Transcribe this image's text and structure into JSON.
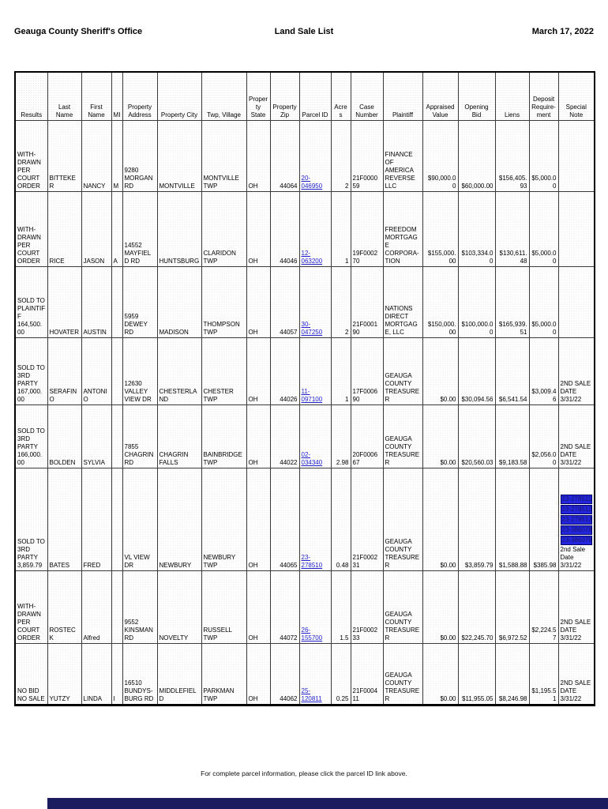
{
  "page": {
    "header_left": "Geauga County Sheriff's Office",
    "header_center": "Land Sale List",
    "header_right": "March 17, 2022",
    "footer_note": "For complete parcel information, please click the parcel ID link above."
  },
  "colors": {
    "link_blue": "#2222cc",
    "highlight_link_bg": "#2326dd",
    "bottom_bar_navy": "#1b1b60"
  },
  "table": {
    "columns": [
      "Results",
      "Last Name",
      "First Name",
      "MI",
      "Property Address",
      "Property City",
      "Twp, Village",
      "Property State",
      "Property Zip",
      "Parcel ID",
      "Acres",
      "Case Number",
      "Plaintiff",
      "Appraised Value",
      "Opening Bid",
      "Liens",
      "Deposit Require-ment",
      "Special Note"
    ],
    "rows": [
      {
        "results": "WITH-DRAWN PER COURT ORDER",
        "last_name": "BITTEKER",
        "first_name": "NANCY",
        "mi": "M",
        "address": "9280 MORGAN RD",
        "city": "MONTVILLE",
        "twp_village": "MONTVILLE TWP",
        "state": "OH",
        "zip": "44064",
        "parcel_id": "20-046950",
        "acres": "2",
        "case_number": "21F000059",
        "plaintiff": "FINANCE OF AMERICA REVERSE LLC",
        "appraised_value": "$90,000.00",
        "opening_bid": "$60,000.00",
        "liens": "$156,405.93",
        "deposit": "$5,000.00",
        "special_note": "",
        "special_links": []
      },
      {
        "results": "WITH-DRAWN PER COURT ORDER",
        "last_name": "RICE",
        "first_name": "JASON",
        "mi": "A",
        "address": "14552 MAYFIELD RD",
        "city": "HUNTSBURG",
        "twp_village": "CLARIDON TWP",
        "state": "OH",
        "zip": "44046",
        "parcel_id": "12-063200",
        "acres": "1",
        "case_number": "19F000270",
        "plaintiff": "FREEDOM MORTGAGE CORPORA-TION",
        "appraised_value": "$155,000.00",
        "opening_bid": "$103,334.00",
        "liens": "$130,611.48",
        "deposit": "$5,000.00",
        "special_note": "",
        "special_links": []
      },
      {
        "results": "SOLD TO PLAINTIFF 164,500.00",
        "last_name": "HOVATER",
        "first_name": "AUSTIN",
        "mi": "",
        "address": "5959 DEWEY RD",
        "city": "MADISON",
        "twp_village": "THOMPSON TWP",
        "state": "OH",
        "zip": "44057",
        "parcel_id": "30-047250",
        "acres": "2",
        "case_number": "21F000190",
        "plaintiff": "NATIONS DIRECT MORTGAGE, LLC",
        "appraised_value": "$150,000.00",
        "opening_bid": "$100,000.00",
        "liens": "$165,939.51",
        "deposit": "$5,000.00",
        "special_note": "",
        "special_links": []
      },
      {
        "results": "SOLD TO 3RD PARTY 167,000.00",
        "last_name": "SERAFINO",
        "first_name": "ANTONIO",
        "mi": "",
        "address": "12630 VALLEY VIEW DR",
        "city": "CHESTERLAND",
        "twp_village": "CHESTER TWP",
        "state": "OH",
        "zip": "44026",
        "parcel_id": "11-097100",
        "acres": "1",
        "case_number": "17F000690",
        "plaintiff": "GEAUGA COUNTY TREASURER",
        "appraised_value": "$0.00",
        "opening_bid": "$30,094.56",
        "liens": "$6,541.54",
        "deposit": "$3,009.46",
        "special_note": "2ND SALE DATE 3/31/22",
        "special_links": []
      },
      {
        "results": "SOLD TO 3RD PARTY 166,000.00",
        "last_name": "BOLDEN",
        "first_name": "SYLVIA",
        "mi": "",
        "address": "7855 CHAGRIN RD",
        "city": "CHAGRIN FALLS",
        "twp_village": "BAINBRIDGE TWP",
        "state": "OH",
        "zip": "44022",
        "parcel_id": "02-034340",
        "acres": "2.98",
        "case_number": "20F000667",
        "plaintiff": "GEAUGA COUNTY TREASURER",
        "appraised_value": "$0.00",
        "opening_bid": "$20,560.03",
        "liens": "$9,183.58",
        "deposit": "$2,056.00",
        "special_note": "2ND SALE DATE 3/31/22",
        "special_links": []
      },
      {
        "results": "SOLD TO 3RD PARTY 3,859.79",
        "last_name": "BATES",
        "first_name": "FRED",
        "mi": "",
        "address": "VL VIEW DR",
        "city": "NEWBURY",
        "twp_village": "NEWBURY TWP",
        "state": "OH",
        "zip": "44065",
        "parcel_id": "23-278510",
        "acres": "0.48",
        "case_number": "21F000231",
        "plaintiff": "GEAUGA COUNTY TREASURER",
        "appraised_value": "$0.00",
        "opening_bid": "$3,859.79",
        "liens": "$1,588.88",
        "deposit": "$385.98",
        "special_note": "2nd Sale Date 3/31/22",
        "special_links": [
          "23-278511",
          "23-278512",
          "23-278513",
          "23-386078",
          "23-386079"
        ]
      },
      {
        "results": "WITH-DRAWN PER COURT ORDER",
        "last_name": "ROSTECK",
        "first_name": "Alfred",
        "mi": "",
        "address": "9552 KINSMAN RD",
        "city": "NOVELTY",
        "twp_village": "RUSSELL TWP",
        "state": "OH",
        "zip": "44072",
        "parcel_id": "26-155700",
        "acres": "1.5",
        "case_number": "21F000233",
        "plaintiff": "GEAUGA COUNTY TREASURER",
        "appraised_value": "$0.00",
        "opening_bid": "$22,245.70",
        "liens": "$6,972.52",
        "deposit": "$2,224.57",
        "special_note": "2ND SALE DATE 3/31/22",
        "special_links": []
      },
      {
        "results": "NO BID NO SALE",
        "last_name": "YUTZY",
        "first_name": "LINDA",
        "mi": "I",
        "address": "16510 BUNDYS-BURG RD",
        "city": "MIDDLEFIELD",
        "twp_village": "PARKMAN TWP",
        "state": "OH",
        "zip": "44062",
        "parcel_id": "25-120811",
        "acres": "0.25",
        "case_number": "21F000411",
        "plaintiff": "GEAUGA COUNTY TREASURER",
        "appraised_value": "$0.00",
        "opening_bid": "$11,955.05",
        "liens": "$8,246.98",
        "deposit": "$1,195.51",
        "special_note": "2ND SALE DATE 3/31/22",
        "special_links": []
      }
    ]
  }
}
